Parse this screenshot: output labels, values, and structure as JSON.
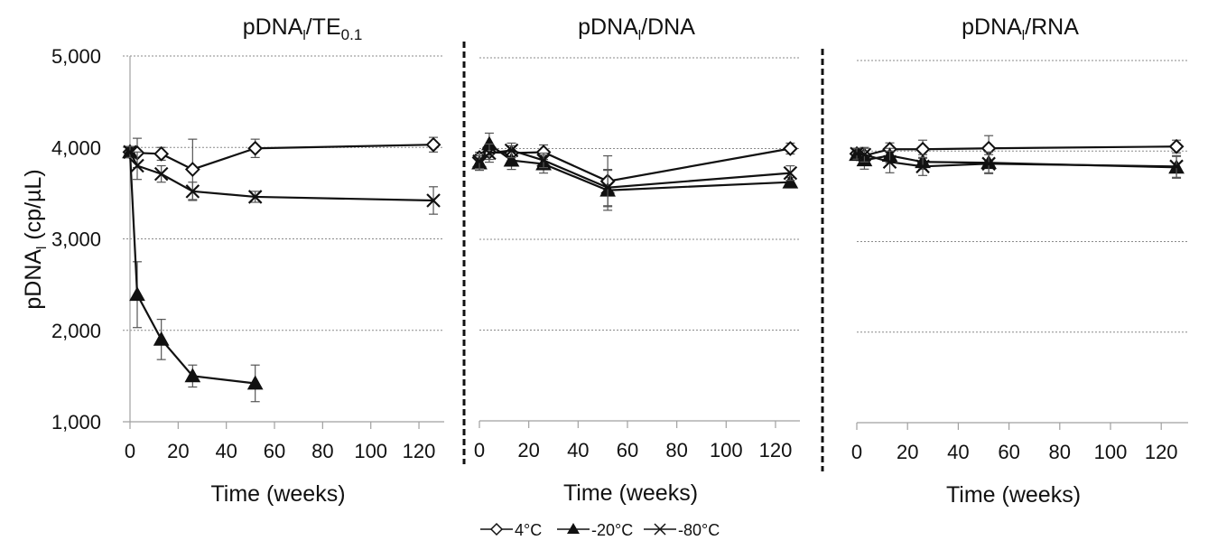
{
  "chart_data": {
    "type": "line",
    "ylabel_main": "pDNA",
    "ylabel_sub": "l",
    "ylabel_rest": " (cp/µL)",
    "ylim": [
      1000,
      5000
    ],
    "yticks": [
      1000,
      2000,
      3000,
      4000,
      5000
    ],
    "ytick_labels": [
      "1,000",
      "2,000",
      "3,000",
      "4,000",
      "5,000"
    ],
    "xlim": [
      0,
      130
    ],
    "xticks": [
      0,
      20,
      40,
      60,
      80,
      100,
      120
    ],
    "xtick_labels": [
      "0",
      "20",
      "40",
      "60",
      "80",
      "100",
      "120"
    ],
    "xlabel": "Time (weeks)",
    "grid": "horizontal-dotted",
    "legend": {
      "placement": "bottom-center",
      "entries": [
        {
          "name": "4°C",
          "marker": "diamond-open"
        },
        {
          "name": "-20°C",
          "marker": "triangle-filled"
        },
        {
          "name": "-80°C",
          "marker": "cross-x"
        }
      ]
    },
    "panels": [
      {
        "title_main": "pDNA",
        "title_sub1": "l",
        "title_mid": "/TE",
        "title_sub2": "0.1",
        "series": [
          {
            "name": "4°C",
            "x": [
              0,
              3,
              13,
              26,
              52,
              126
            ],
            "y": [
              3950,
              3940,
              3930,
              3760,
              3990,
              4030
            ],
            "err": [
              60,
              160,
              70,
              330,
              100,
              80
            ]
          },
          {
            "name": "-20°C",
            "x": [
              0,
              3,
              13,
              26,
              52
            ],
            "y": [
              3950,
              2390,
              1900,
              1500,
              1420
            ],
            "err": [
              60,
              360,
              220,
              120,
              200
            ]
          },
          {
            "name": "-80°C",
            "x": [
              0,
              3,
              13,
              26,
              52,
              126
            ],
            "y": [
              3950,
              3800,
              3710,
              3520,
              3460,
              3420
            ],
            "err": [
              60,
              150,
              90,
              100,
              60,
              150
            ]
          }
        ]
      },
      {
        "title_main": "pDNA",
        "title_sub1": "l",
        "title_mid": "/DNA",
        "title_sub2": "",
        "series": [
          {
            "name": "4°C",
            "x": [
              0,
              4,
              13,
              26,
              52,
              126
            ],
            "y": [
              3900,
              3960,
              3950,
              3960,
              3640,
              4000
            ],
            "err": [
              60,
              80,
              80,
              80,
              280,
              60
            ]
          },
          {
            "name": "-20°C",
            "x": [
              0,
              4,
              13,
              26,
              52,
              126
            ],
            "y": [
              3840,
              4050,
              3870,
              3830,
              3540,
              3630
            ],
            "err": [
              80,
              120,
              100,
              100,
              220,
              50
            ]
          },
          {
            "name": "-80°C",
            "x": [
              0,
              4,
              13,
              26,
              52,
              126
            ],
            "y": [
              3860,
              3950,
              3980,
              3870,
              3570,
              3730
            ],
            "err": [
              80,
              100,
              80,
              80,
              200,
              80
            ]
          }
        ]
      },
      {
        "title_main": "pDNA",
        "title_sub1": "l",
        "title_mid": "/RNA",
        "title_sub2": "",
        "series": [
          {
            "name": "4°C",
            "x": [
              0,
              3,
              13,
              26,
              52,
              126
            ],
            "y": [
              3970,
              3950,
              4020,
              4020,
              4030,
              4050
            ],
            "err": [
              60,
              80,
              70,
              100,
              140,
              70
            ]
          },
          {
            "name": "-20°C",
            "x": [
              0,
              3,
              13,
              26,
              52,
              126
            ],
            "y": [
              3960,
              3900,
              3950,
              3880,
              3870,
              3820
            ],
            "err": [
              60,
              100,
              80,
              80,
              120,
              120
            ]
          },
          {
            "name": "-80°C",
            "x": [
              0,
              3,
              13,
              26,
              52,
              126
            ],
            "y": [
              3970,
              3960,
              3880,
              3830,
              3860,
              3830
            ],
            "err": [
              60,
              80,
              120,
              100,
              100,
              120
            ]
          }
        ]
      }
    ]
  }
}
